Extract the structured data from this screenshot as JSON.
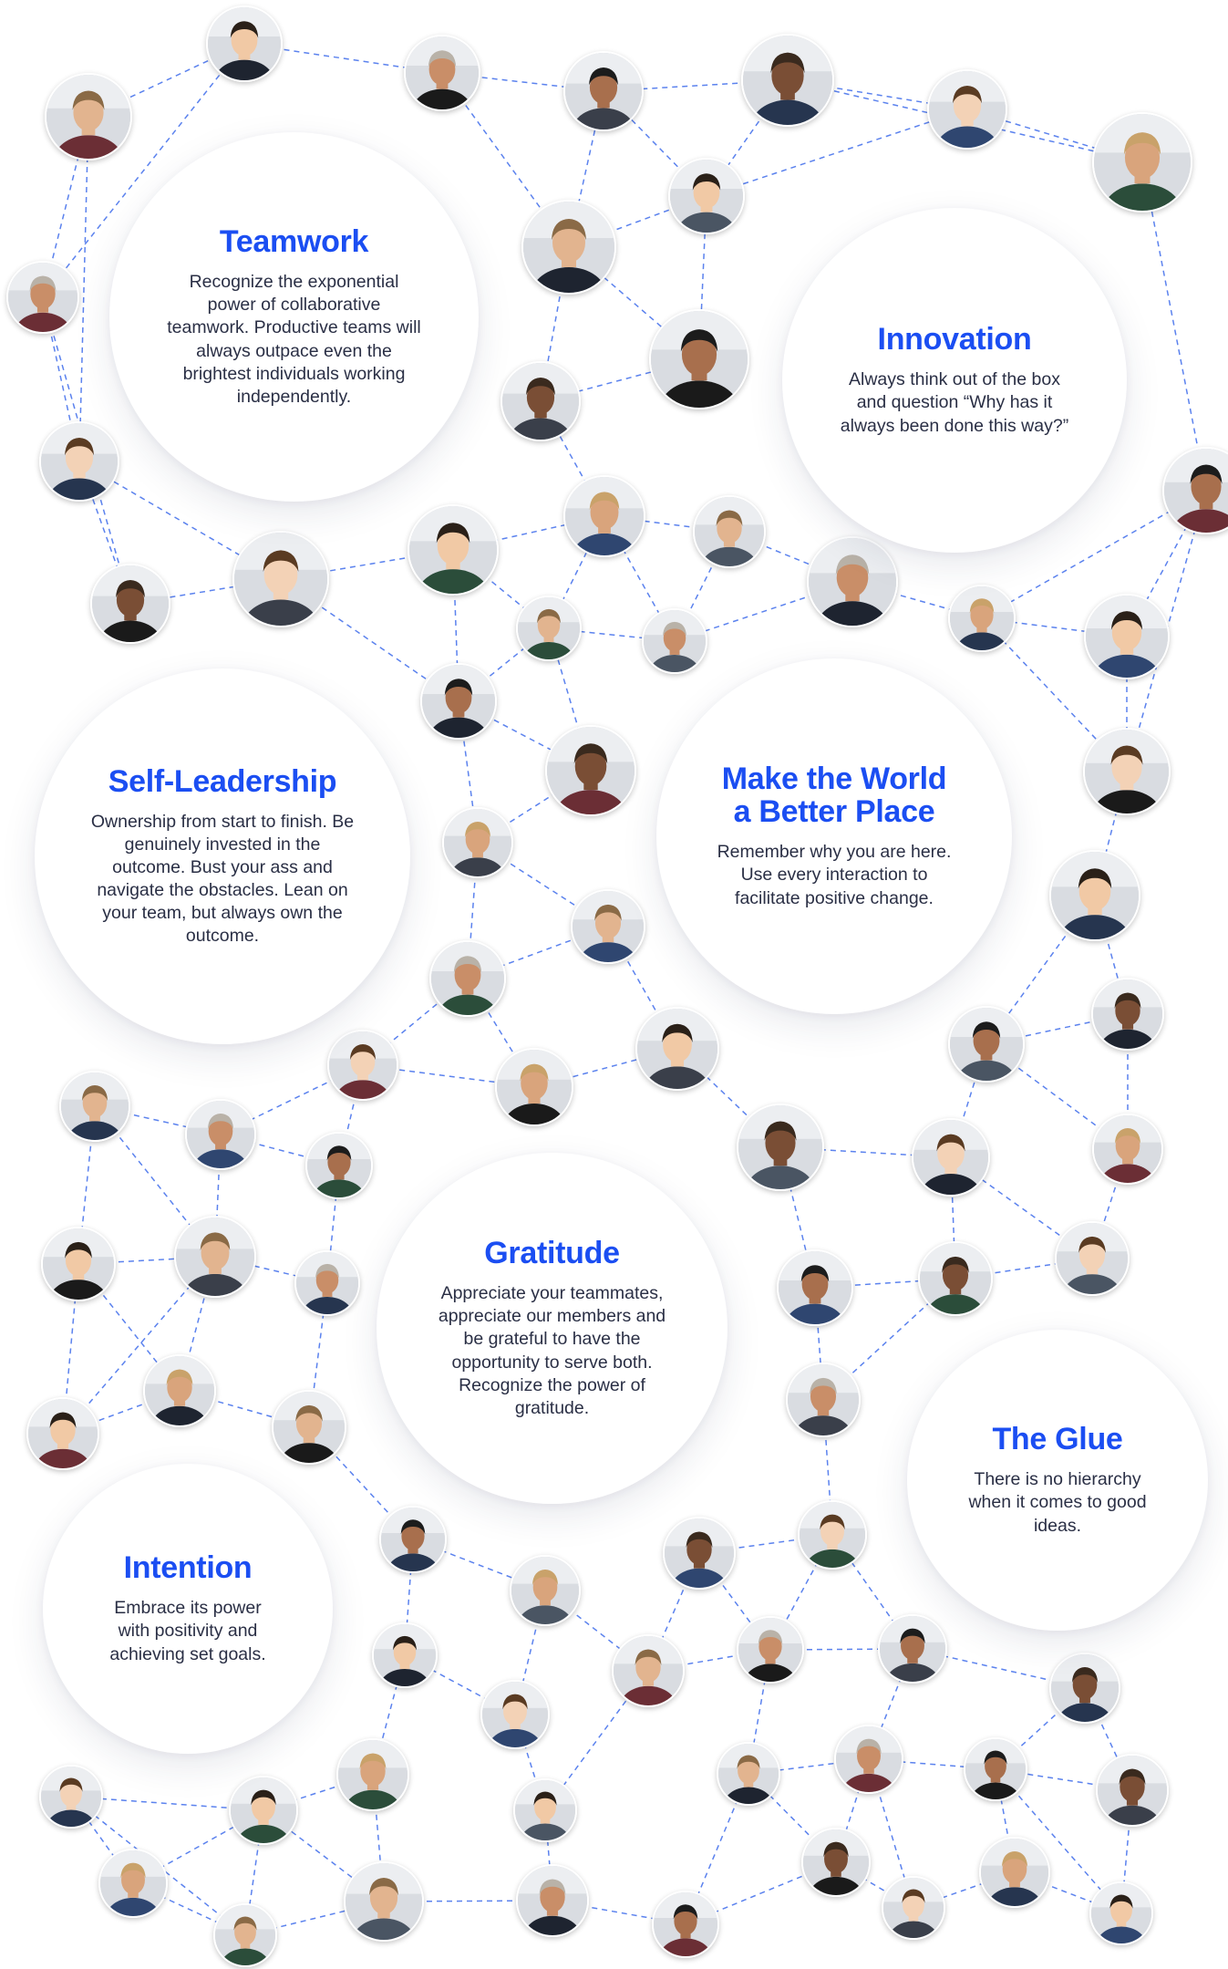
{
  "values": [
    {
      "id": "teamwork",
      "title": "Teamwork",
      "description": "Recognize the exponential power of collaborative teamwork. Productive teams will always outpace even the brightest individuals working independently."
    },
    {
      "id": "innovation",
      "title": "Innovation",
      "description": "Always think out of the box and question “Why has it always been done this way?”"
    },
    {
      "id": "self-leadership",
      "title": "Self-Leadership",
      "description": "Ownership from start to finish. Be genuinely invested in the outcome. Bust your ass and navigate the obstacles. Lean on your team, but always own the outcome."
    },
    {
      "id": "make-the-world",
      "title": "Make the World\na Better Place",
      "description": "Remember why you are here. Use every interaction to facilitate positive change."
    },
    {
      "id": "gratitude",
      "title": "Gratitude",
      "description": "Appreciate your teammates, appreciate our members and be grateful to have the opportunity to serve both. Recognize the power of gratitude."
    },
    {
      "id": "the-glue",
      "title": "The Glue",
      "description": "There is no hierarchy when it comes to good ideas."
    },
    {
      "id": "intention",
      "title": "Intention",
      "description": "Embrace its power with positivity and achieving set goals."
    }
  ],
  "colors": {
    "accent": "#1b4ef2",
    "line": "#5b82ee",
    "text": "#2a2f45"
  }
}
